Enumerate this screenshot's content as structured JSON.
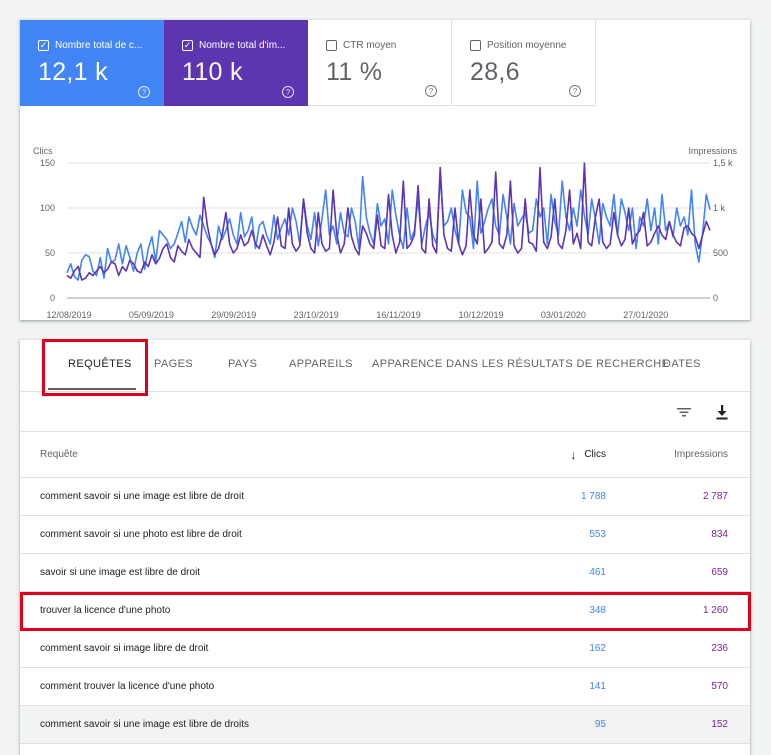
{
  "metrics": [
    {
      "label": "Nombre total de c...",
      "value": "12,1 k",
      "checked": true,
      "color": "#4285f4"
    },
    {
      "label": "Nombre total d'im...",
      "value": "110 k",
      "checked": true,
      "color": "#5e35b1"
    },
    {
      "label": "CTR moyen",
      "value": "11 %",
      "checked": false,
      "color": "#ffffff"
    },
    {
      "label": "Position moyenne",
      "value": "28,6",
      "checked": false,
      "color": "#ffffff"
    }
  ],
  "help_glyph": "?",
  "checkmark_glyph": "✓",
  "chart_data": {
    "type": "line",
    "ylabel_left": "Clics",
    "ylabel_right": "Impressions",
    "y_left_ticks": [
      "0",
      "50",
      "100",
      "150"
    ],
    "y_right_ticks": [
      "0",
      "500",
      "1 k",
      "1,5 k"
    ],
    "ylim_left": [
      0,
      150
    ],
    "ylim_right": [
      0,
      1500
    ],
    "x_ticks": [
      "12/08/2019",
      "05/09/2019",
      "29/09/2019",
      "23/10/2019",
      "16/11/2019",
      "10/12/2019",
      "03/01/2020",
      "27/01/2020"
    ],
    "x_start": "2019-08-12",
    "x_end": "2020-02-09",
    "grid": true,
    "series": [
      {
        "color": "#4285f4",
        "axis": "left",
        "values": [
          28,
          38,
          24,
          20,
          42,
          48,
          46,
          30,
          25,
          45,
          22,
          55,
          40,
          42,
          60,
          38,
          58,
          45,
          30,
          50,
          60,
          32,
          55,
          68,
          40,
          75,
          70,
          65,
          55,
          60,
          72,
          85,
          62,
          90,
          78,
          70,
          92,
          80,
          68,
          60,
          45,
          80,
          65,
          75,
          88,
          70,
          60,
          95,
          68,
          75,
          90,
          55,
          80,
          85,
          70,
          60,
          92,
          65,
          78,
          88,
          70,
          100,
          85,
          60,
          110,
          80,
          65,
          95,
          58,
          88,
          120,
          70,
          80,
          60,
          95,
          72,
          68,
          100,
          85,
          55,
          135,
          90,
          72,
          60,
          105,
          80,
          88,
          60,
          120,
          92,
          70,
          55,
          100,
          65,
          75,
          110,
          60,
          80,
          95,
          70,
          60,
          135,
          80,
          85,
          100,
          75,
          60,
          120,
          95,
          90,
          55,
          130,
          72,
          85,
          100,
          110,
          80,
          70,
          115,
          90,
          60,
          105,
          80,
          88,
          95,
          72,
          75,
          110,
          90,
          100,
          60,
          115,
          85,
          70,
          130,
          90,
          75,
          100,
          80,
          120,
          92,
          70,
          110,
          88,
          60,
          105,
          90,
          80,
          115,
          70,
          110,
          95,
          75,
          100,
          55,
          90,
          80,
          110,
          75,
          100,
          60,
          115,
          75,
          85,
          68,
          100,
          80,
          90,
          70,
          120,
          60,
          40,
          72,
          115,
          98
        ]
      },
      {
        "color": "#5e35b1",
        "axis": "left",
        "values": [
          25,
          22,
          30,
          35,
          20,
          22,
          28,
          25,
          30,
          35,
          28,
          32,
          40,
          38,
          25,
          35,
          30,
          42,
          38,
          30,
          28,
          40,
          35,
          48,
          38,
          44,
          55,
          60,
          45,
          40,
          58,
          52,
          48,
          65,
          55,
          50,
          45,
          112,
          80,
          60,
          48,
          55,
          70,
          95,
          60,
          50,
          55,
          70,
          58,
          62,
          75,
          60,
          55,
          70,
          58,
          48,
          62,
          90,
          58,
          55,
          100,
          60,
          52,
          58,
          110,
          72,
          55,
          50,
          95,
          60,
          52,
          55,
          120,
          70,
          50,
          60,
          100,
          68,
          55,
          48,
          80,
          72,
          60,
          55,
          92,
          58,
          55,
          115,
          70,
          50,
          62,
          130,
          55,
          60,
          70,
          125,
          55,
          50,
          110,
          58,
          50,
          145,
          70,
          55,
          52,
          100,
          60,
          48,
          58,
          120,
          70,
          60,
          110,
          50,
          55,
          62,
          140,
          60,
          55,
          70,
          130,
          58,
          50,
          55,
          110,
          62,
          60,
          52,
          145,
          62,
          55,
          68,
          110,
          60,
          55,
          75,
          120,
          60,
          72,
          55,
          150,
          62,
          58,
          90,
          110,
          62,
          55,
          60,
          95,
          70,
          58,
          65,
          100,
          60,
          70,
          75,
          95,
          58,
          62,
          72,
          80,
          70,
          65,
          85,
          70,
          62,
          58,
          78,
          80,
          72,
          68,
          55,
          70,
          85,
          75
        ]
      }
    ]
  },
  "tabs": [
    {
      "label": "REQUÊTES",
      "active": true
    },
    {
      "label": "PAGES",
      "active": false
    },
    {
      "label": "PAYS",
      "active": false
    },
    {
      "label": "APPAREILS",
      "active": false
    },
    {
      "label": "APPARENCE DANS LES RÉSULTATS DE RECHERCHE",
      "active": false
    },
    {
      "label": "DATES",
      "active": false
    }
  ],
  "toolbar": {
    "filter_icon": "filter-icon",
    "download_icon": "download-icon"
  },
  "table": {
    "headers": {
      "query": "Requête",
      "clicks": "Clics",
      "impressions": "Impressions",
      "sort_glyph": "↓"
    },
    "rows": [
      {
        "query": "comment savoir si une image est libre de droit",
        "clicks": "1 788",
        "impressions": "2 787"
      },
      {
        "query": "comment savoir si une photo est libre de droit",
        "clicks": "553",
        "impressions": "834"
      },
      {
        "query": "savoir si une image est libre de droit",
        "clicks": "461",
        "impressions": "659"
      },
      {
        "query": "trouver la licence d'une photo",
        "clicks": "348",
        "impressions": "1 260"
      },
      {
        "query": "comment savoir si image libre de droit",
        "clicks": "162",
        "impressions": "236"
      },
      {
        "query": "comment trouver la licence d'une photo",
        "clicks": "141",
        "impressions": "570"
      },
      {
        "query": "comment savoir si une image est libre de droits",
        "clicks": "95",
        "impressions": "152"
      }
    ]
  },
  "highlight_color": "#e0001b"
}
